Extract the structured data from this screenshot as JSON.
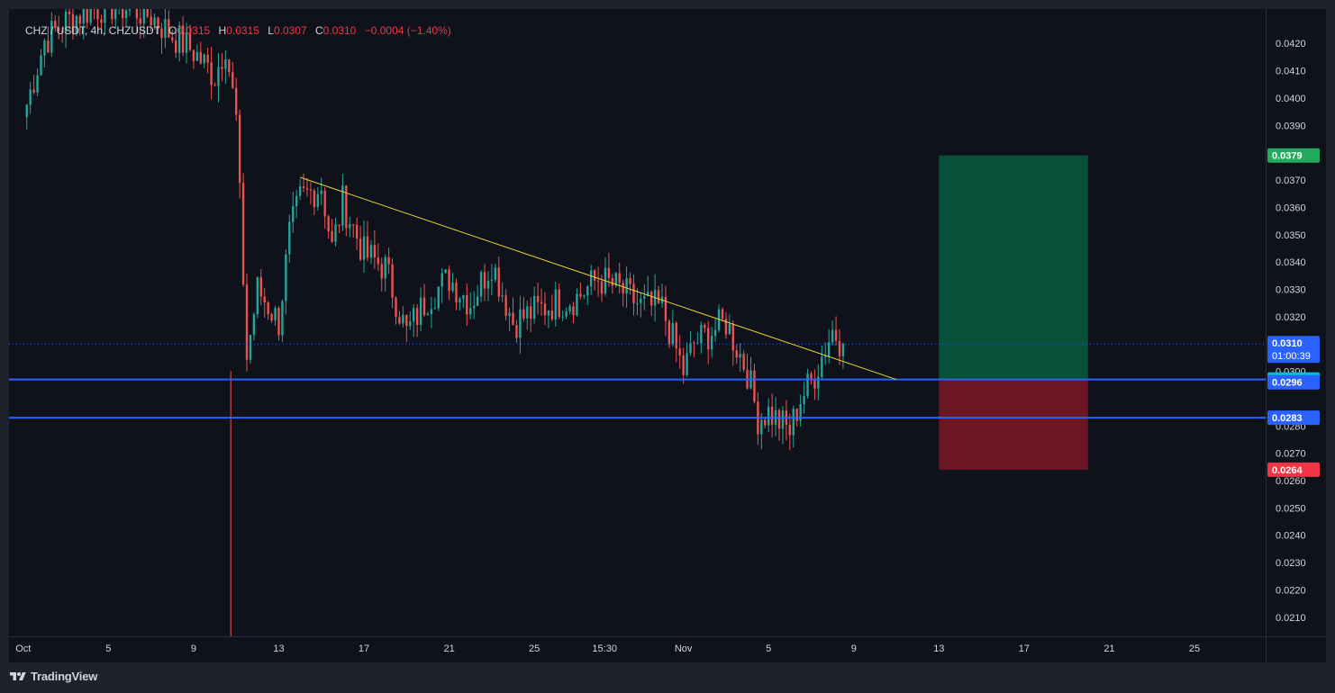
{
  "header": {
    "symbol": "CHZ / USDT, 4h, CHZUSDT",
    "open_label": "O",
    "open_value": "0.0315",
    "high_label": "H",
    "high_value": "0.0315",
    "low_label": "L",
    "low_value": "0.0307",
    "close_label": "C",
    "close_value": "0.0310",
    "change": "−0.0004 (−1.40%)"
  },
  "footer": {
    "brand": "TradingView"
  },
  "colors": {
    "background": "#0f121a",
    "up": "#26a69a",
    "down": "#ef5350",
    "trendline": "#e6d23a",
    "hline": "#2962ff",
    "profit_zone": "#08503a",
    "loss_zone": "#6b1525"
  },
  "chart_data": {
    "type": "candlestick",
    "symbol": "CHZ / USDT",
    "interval": "4h",
    "ylim": [
      0.0205,
      0.0426
    ],
    "y_ticks": [
      "0.0420",
      "0.0410",
      "0.0400",
      "0.0390",
      "0.0370",
      "0.0360",
      "0.0350",
      "0.0340",
      "0.0330",
      "0.0320",
      "0.0300",
      "0.0280",
      "0.0270",
      "0.0260",
      "0.0250",
      "0.0240",
      "0.0230",
      "0.0220",
      "0.0210"
    ],
    "x_ticks": [
      "Oct",
      "5",
      "9",
      "13",
      "17",
      "21",
      "25",
      "15:30",
      "Nov",
      "5",
      "9",
      "13",
      "17",
      "21",
      "25"
    ],
    "price_path": [
      [
        "Oct 1",
        0.0393
      ],
      [
        "Oct 2",
        0.0421
      ],
      [
        "Oct 3",
        0.0428
      ],
      [
        "Oct 4",
        0.0432
      ],
      [
        "Oct 5",
        0.0434
      ],
      [
        "Oct 6",
        0.0433
      ],
      [
        "Oct 7",
        0.043
      ],
      [
        "Oct 8",
        0.0423
      ],
      [
        "Oct 9",
        0.0417
      ],
      [
        "Oct 10",
        0.0408
      ],
      [
        "Oct 10",
        0.042
      ],
      [
        "Oct 11",
        0.0392
      ],
      [
        "Oct 11",
        0.0305
      ],
      [
        "Oct 12",
        0.033
      ],
      [
        "Oct 13",
        0.0318
      ],
      [
        "Oct 13",
        0.035
      ],
      [
        "Oct 14",
        0.0363
      ],
      [
        "Oct 15",
        0.0368
      ],
      [
        "Oct 15",
        0.0345
      ],
      [
        "Oct 16",
        0.0362
      ],
      [
        "Oct 17",
        0.0343
      ],
      [
        "Oct 18",
        0.0338
      ],
      [
        "Oct 19",
        0.0314
      ],
      [
        "Oct 20",
        0.0327
      ],
      [
        "Oct 21",
        0.0334
      ],
      [
        "Oct 22",
        0.0325
      ],
      [
        "Oct 23",
        0.034
      ],
      [
        "Oct 24",
        0.0318
      ],
      [
        "Oct 25",
        0.0322
      ],
      [
        "Oct 26",
        0.0325
      ],
      [
        "Oct 27",
        0.0327
      ],
      [
        "Oct 28",
        0.0334
      ],
      [
        "Oct 29",
        0.033
      ],
      [
        "Oct 30",
        0.0324
      ],
      [
        "Oct 31",
        0.0323
      ],
      [
        "Nov 1",
        0.03
      ],
      [
        "Nov 1",
        0.031
      ],
      [
        "Nov 2",
        0.0313
      ],
      [
        "Nov 3",
        0.0318
      ],
      [
        "Nov 4",
        0.03
      ],
      [
        "Nov 4",
        0.0283
      ],
      [
        "Nov 5",
        0.0285
      ],
      [
        "Nov 6",
        0.0278
      ],
      [
        "Nov 6",
        0.029
      ],
      [
        "Nov 7",
        0.0296
      ],
      [
        "Nov 8",
        0.0315
      ],
      [
        "Nov 8",
        0.031
      ]
    ],
    "trendline": {
      "start": [
        "Oct 14",
        0.0371
      ],
      "end": [
        "Nov 11",
        0.0297
      ]
    },
    "horizontal_lines": [
      0.0297,
      0.0283
    ],
    "position": {
      "from": "Nov 13",
      "to": "Nov 20",
      "entry": 0.0297,
      "target": 0.0379,
      "stop": 0.0264
    },
    "price_labels": [
      {
        "text": "0.0379",
        "value": 0.0379,
        "bg": "#22ab5e"
      },
      {
        "text": "0.0310",
        "value": 0.031,
        "bg": "#2962ff",
        "subtext": "01:00:39"
      },
      {
        "text": "0.0297",
        "value": 0.0297,
        "bg": "#00bcd4"
      },
      {
        "text": "0.0296",
        "value": 0.0296,
        "bg": "#2962ff"
      },
      {
        "text": "0.0283",
        "value": 0.0283,
        "bg": "#2962ff"
      },
      {
        "text": "0.0264",
        "value": 0.0264,
        "bg": "#f23645"
      }
    ]
  }
}
